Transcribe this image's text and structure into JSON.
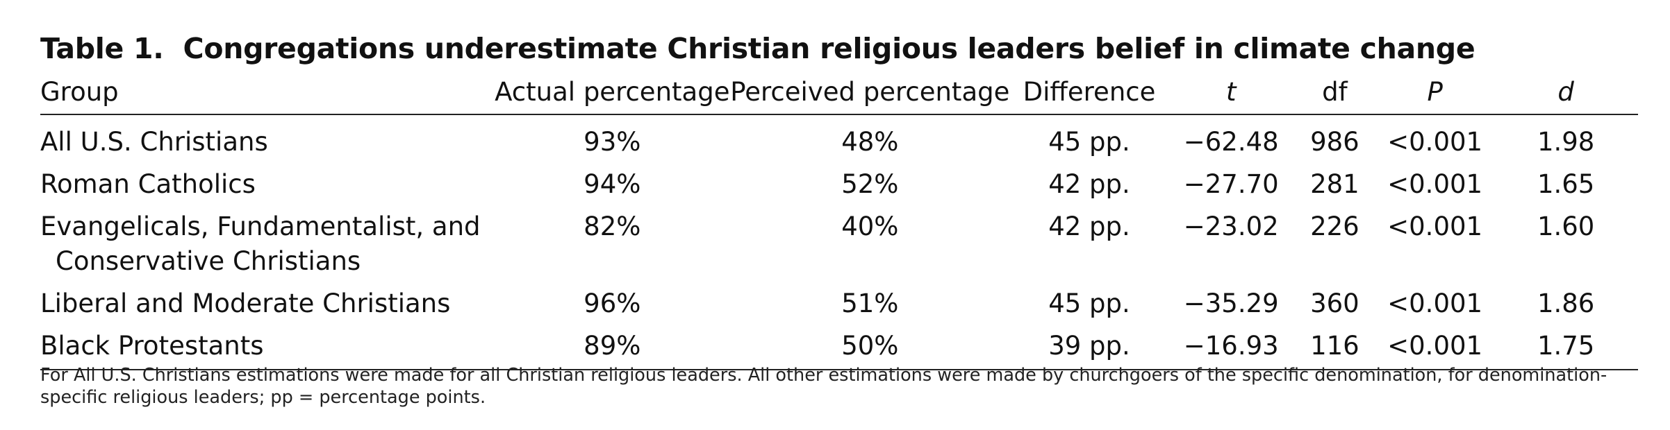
{
  "table": {
    "number": "Table 1.",
    "title": "Congregations underestimate Christian religious leaders belief in climate change",
    "headers": [
      "Group",
      "Actual percentage",
      "Perceived percentage",
      "Difference",
      "t",
      "df",
      "P",
      "d"
    ],
    "rows": [
      {
        "group": "All U.S. Christians",
        "group_cont": "",
        "actual": "93%",
        "perceived": "48%",
        "difference": "45 pp.",
        "t": "−62.48",
        "df": "986",
        "p": "<0.001",
        "d": "1.98"
      },
      {
        "group": "Roman Catholics",
        "group_cont": "",
        "actual": "94%",
        "perceived": "52%",
        "difference": "42 pp.",
        "t": "−27.70",
        "df": "281",
        "p": "<0.001",
        "d": "1.65"
      },
      {
        "group": "Evangelicals, Fundamentalist, and",
        "group_cont": "Conservative Christians",
        "actual": "82%",
        "perceived": "40%",
        "difference": "42 pp.",
        "t": "−23.02",
        "df": "226",
        "p": "<0.001",
        "d": "1.60"
      },
      {
        "group": "Liberal and Moderate Christians",
        "group_cont": "",
        "actual": "96%",
        "perceived": "51%",
        "difference": "45 pp.",
        "t": "−35.29",
        "df": "360",
        "p": "<0.001",
        "d": "1.86"
      },
      {
        "group": "Black Protestants",
        "group_cont": "",
        "actual": "89%",
        "perceived": "50%",
        "difference": "39 pp.",
        "t": "−16.93",
        "df": "116",
        "p": "<0.001",
        "d": "1.75"
      }
    ],
    "footnote": "For All U.S. Christians estimations were made for all Christian religious leaders. All other estimations were made by churchgoers of the specific denomination, for denomination-specific religious leaders; pp = percentage points."
  }
}
